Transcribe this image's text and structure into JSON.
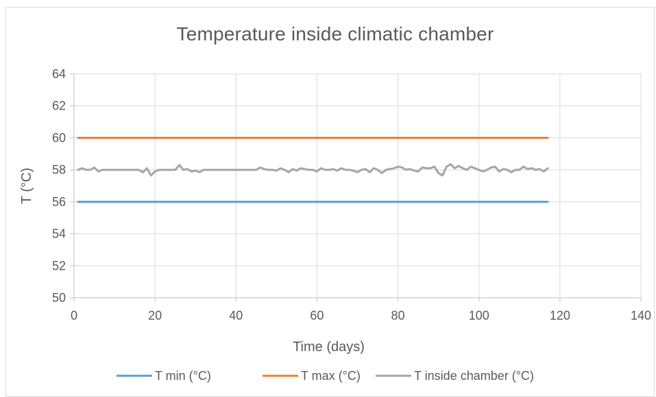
{
  "chart_data": {
    "type": "line",
    "title": "Temperature  inside climatic chamber",
    "xlabel": "Time (days)",
    "ylabel": "T (°C)",
    "xlim": [
      0,
      140
    ],
    "ylim": [
      50,
      64
    ],
    "x_ticks": [
      0,
      20,
      40,
      60,
      80,
      100,
      120,
      140
    ],
    "y_ticks": [
      50,
      52,
      54,
      56,
      58,
      60,
      62,
      64
    ],
    "grid": true,
    "legend_position": "bottom",
    "series": [
      {
        "name": "T min (°C)",
        "color": "#5b9bd5",
        "x": [
          1,
          117
        ],
        "values": [
          56,
          56
        ]
      },
      {
        "name": "T max (°C)",
        "color": "#ed7d31",
        "x": [
          1,
          117
        ],
        "values": [
          60,
          60
        ]
      },
      {
        "name": "T inside chamber (°C)",
        "color": "#a5a5a5",
        "x": [
          1,
          2,
          3,
          4,
          5,
          6,
          7,
          8,
          9,
          10,
          11,
          12,
          13,
          14,
          15,
          16,
          17,
          18,
          19,
          20,
          21,
          22,
          23,
          24,
          25,
          26,
          27,
          28,
          29,
          30,
          31,
          32,
          33,
          34,
          35,
          36,
          37,
          38,
          39,
          40,
          41,
          42,
          43,
          44,
          45,
          46,
          47,
          48,
          49,
          50,
          51,
          52,
          53,
          54,
          55,
          56,
          57,
          58,
          59,
          60,
          61,
          62,
          63,
          64,
          65,
          66,
          67,
          68,
          69,
          70,
          71,
          72,
          73,
          74,
          75,
          76,
          77,
          78,
          79,
          80,
          81,
          82,
          83,
          84,
          85,
          86,
          87,
          88,
          89,
          90,
          91,
          92,
          93,
          94,
          95,
          96,
          97,
          98,
          99,
          100,
          101,
          102,
          103,
          104,
          105,
          106,
          107,
          108,
          109,
          110,
          111,
          112,
          113,
          114,
          115,
          116,
          117
        ],
        "values": [
          58.0,
          58.1,
          58.0,
          58.0,
          58.15,
          57.9,
          58.0,
          58.0,
          58.0,
          58.0,
          58.0,
          58.0,
          58.0,
          58.0,
          58.0,
          58.0,
          57.85,
          58.1,
          57.65,
          57.9,
          58.0,
          58.0,
          58.0,
          58.0,
          58.0,
          58.3,
          58.0,
          58.05,
          57.9,
          57.95,
          57.85,
          58.0,
          58.0,
          58.0,
          58.0,
          58.0,
          58.0,
          58.0,
          58.0,
          58.0,
          58.0,
          58.0,
          58.0,
          58.0,
          58.0,
          58.15,
          58.05,
          58.0,
          58.0,
          57.95,
          58.1,
          58.0,
          57.85,
          58.05,
          57.95,
          58.1,
          58.05,
          58.0,
          58.0,
          57.9,
          58.1,
          58.0,
          58.0,
          58.05,
          57.95,
          58.1,
          58.0,
          58.0,
          57.95,
          57.85,
          58.0,
          58.05,
          57.85,
          58.1,
          58.0,
          57.8,
          58.0,
          58.05,
          58.1,
          58.2,
          58.15,
          58.0,
          58.05,
          57.95,
          57.9,
          58.15,
          58.1,
          58.1,
          58.2,
          57.8,
          57.65,
          58.2,
          58.35,
          58.1,
          58.25,
          58.1,
          58.0,
          58.2,
          58.1,
          58.0,
          57.9,
          58.0,
          58.15,
          58.2,
          57.9,
          58.05,
          58.0,
          57.85,
          58.0,
          58.0,
          58.2,
          58.05,
          58.1,
          58.0,
          58.05,
          57.9,
          58.1
        ]
      }
    ]
  }
}
